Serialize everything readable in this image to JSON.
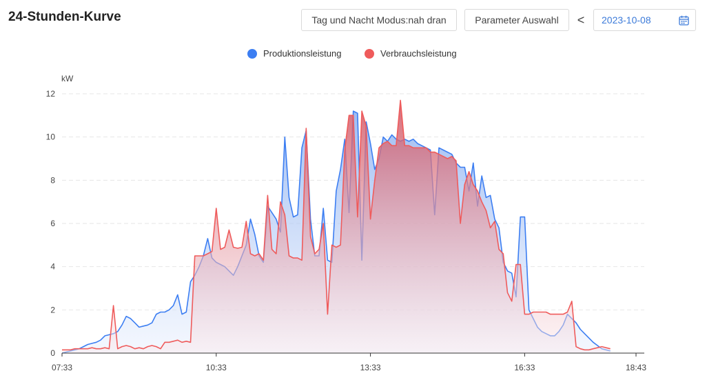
{
  "header": {
    "title": "24-Stunden-Kurve",
    "mode_button": "Tag und Nacht Modus:nah dran",
    "param_button": "Parameter Auswahl",
    "prev_symbol": "<",
    "date": "2023-10-08"
  },
  "icons": {
    "prev": "chevron-left-icon",
    "calendar": "calendar-icon"
  },
  "colors": {
    "production": "#3c7ef2",
    "consumption": "#ef5b5b",
    "grid": "#e6e6e6",
    "date_text": "#3b7ad9"
  },
  "chart_data": {
    "type": "area",
    "ylabel": "kW",
    "ylim": [
      0,
      12
    ],
    "yticks": [
      0,
      2,
      4,
      6,
      8,
      10,
      12
    ],
    "xlim_minutes_since_midnight": [
      453,
      1123
    ],
    "xticks": [
      "07:33",
      "10:33",
      "13:33",
      "16:33",
      "18:43"
    ],
    "grid": true,
    "legend_position": "top-center",
    "series": [
      {
        "name": "Produktionsleistung",
        "color": "#3c7ef2",
        "points": [
          [
            "07:33",
            0
          ],
          [
            "07:38",
            0.05
          ],
          [
            "07:43",
            0.1
          ],
          [
            "07:48",
            0.15
          ],
          [
            "07:53",
            0.2
          ],
          [
            "07:58",
            0.3
          ],
          [
            "08:03",
            0.4
          ],
          [
            "08:08",
            0.45
          ],
          [
            "08:13",
            0.5
          ],
          [
            "08:18",
            0.6
          ],
          [
            "08:23",
            0.8
          ],
          [
            "08:28",
            0.85
          ],
          [
            "08:33",
            0.9
          ],
          [
            "08:38",
            1.0
          ],
          [
            "08:43",
            1.3
          ],
          [
            "08:48",
            1.7
          ],
          [
            "08:53",
            1.6
          ],
          [
            "08:58",
            1.4
          ],
          [
            "09:03",
            1.2
          ],
          [
            "09:08",
            1.25
          ],
          [
            "09:13",
            1.3
          ],
          [
            "09:18",
            1.4
          ],
          [
            "09:23",
            1.8
          ],
          [
            "09:28",
            1.9
          ],
          [
            "09:33",
            1.9
          ],
          [
            "09:38",
            2.0
          ],
          [
            "09:43",
            2.2
          ],
          [
            "09:48",
            2.7
          ],
          [
            "09:53",
            1.8
          ],
          [
            "09:58",
            1.9
          ],
          [
            "10:03",
            3.3
          ],
          [
            "10:08",
            3.6
          ],
          [
            "10:13",
            4.0
          ],
          [
            "10:18",
            4.5
          ],
          [
            "10:23",
            5.3
          ],
          [
            "10:28",
            4.4
          ],
          [
            "10:33",
            4.2
          ],
          [
            "10:38",
            4.1
          ],
          [
            "10:43",
            4.0
          ],
          [
            "10:48",
            3.8
          ],
          [
            "10:53",
            3.6
          ],
          [
            "10:58",
            4.0
          ],
          [
            "11:03",
            4.5
          ],
          [
            "11:08",
            5.0
          ],
          [
            "11:13",
            6.2
          ],
          [
            "11:18",
            5.5
          ],
          [
            "11:23",
            4.5
          ],
          [
            "11:28",
            4.2
          ],
          [
            "11:33",
            6.8
          ],
          [
            "11:38",
            6.5
          ],
          [
            "11:43",
            6.2
          ],
          [
            "11:48",
            5.6
          ],
          [
            "11:53",
            10.0
          ],
          [
            "11:58",
            7.2
          ],
          [
            "12:03",
            6.3
          ],
          [
            "12:08",
            6.4
          ],
          [
            "12:13",
            9.5
          ],
          [
            "12:18",
            10.3
          ],
          [
            "12:23",
            6.2
          ],
          [
            "12:28",
            4.5
          ],
          [
            "12:33",
            4.5
          ],
          [
            "12:38",
            6.7
          ],
          [
            "12:43",
            4.3
          ],
          [
            "12:48",
            4.2
          ],
          [
            "12:53",
            7.5
          ],
          [
            "12:58",
            8.5
          ],
          [
            "13:03",
            9.9
          ],
          [
            "13:08",
            6.5
          ],
          [
            "13:13",
            11.2
          ],
          [
            "13:18",
            11.1
          ],
          [
            "13:23",
            4.3
          ],
          [
            "13:28",
            10.7
          ],
          [
            "13:33",
            9.7
          ],
          [
            "13:38",
            8.5
          ],
          [
            "13:43",
            9.0
          ],
          [
            "13:48",
            10.0
          ],
          [
            "13:53",
            9.8
          ],
          [
            "13:58",
            10.1
          ],
          [
            "14:03",
            9.9
          ],
          [
            "14:08",
            9.8
          ],
          [
            "14:13",
            9.9
          ],
          [
            "14:18",
            9.8
          ],
          [
            "14:23",
            9.9
          ],
          [
            "14:28",
            9.7
          ],
          [
            "14:33",
            9.6
          ],
          [
            "14:38",
            9.5
          ],
          [
            "14:43",
            9.4
          ],
          [
            "14:48",
            6.4
          ],
          [
            "14:53",
            9.5
          ],
          [
            "14:58",
            9.4
          ],
          [
            "15:03",
            9.3
          ],
          [
            "15:08",
            9.2
          ],
          [
            "15:13",
            8.8
          ],
          [
            "15:18",
            8.6
          ],
          [
            "15:23",
            8.6
          ],
          [
            "15:28",
            7.5
          ],
          [
            "15:33",
            8.8
          ],
          [
            "15:38",
            6.8
          ],
          [
            "15:43",
            8.2
          ],
          [
            "15:48",
            7.2
          ],
          [
            "15:53",
            7.3
          ],
          [
            "15:58",
            6.2
          ],
          [
            "16:03",
            5.8
          ],
          [
            "16:08",
            4.2
          ],
          [
            "16:13",
            3.8
          ],
          [
            "16:18",
            3.7
          ],
          [
            "16:23",
            2.6
          ],
          [
            "16:28",
            6.3
          ],
          [
            "16:33",
            6.3
          ],
          [
            "16:38",
            2.0
          ],
          [
            "16:43",
            1.6
          ],
          [
            "16:48",
            1.2
          ],
          [
            "16:53",
            1.0
          ],
          [
            "16:58",
            0.9
          ],
          [
            "17:03",
            0.8
          ],
          [
            "17:08",
            0.8
          ],
          [
            "17:13",
            1.0
          ],
          [
            "17:18",
            1.3
          ],
          [
            "17:23",
            1.8
          ],
          [
            "17:28",
            1.6
          ],
          [
            "17:33",
            1.4
          ],
          [
            "17:38",
            1.1
          ],
          [
            "17:43",
            0.9
          ],
          [
            "17:48",
            0.7
          ],
          [
            "17:53",
            0.5
          ],
          [
            "17:58",
            0.35
          ],
          [
            "18:03",
            0.2
          ],
          [
            "18:08",
            0.15
          ],
          [
            "18:13",
            0.1
          ]
        ]
      },
      {
        "name": "Verbrauchsleistung",
        "color": "#ef5b5b",
        "points": [
          [
            "07:33",
            0.15
          ],
          [
            "07:38",
            0.15
          ],
          [
            "07:43",
            0.15
          ],
          [
            "07:48",
            0.2
          ],
          [
            "07:53",
            0.2
          ],
          [
            "07:58",
            0.2
          ],
          [
            "08:03",
            0.2
          ],
          [
            "08:08",
            0.25
          ],
          [
            "08:13",
            0.2
          ],
          [
            "08:18",
            0.2
          ],
          [
            "08:23",
            0.25
          ],
          [
            "08:28",
            0.2
          ],
          [
            "08:33",
            2.2
          ],
          [
            "08:38",
            0.2
          ],
          [
            "08:43",
            0.3
          ],
          [
            "08:48",
            0.35
          ],
          [
            "08:53",
            0.3
          ],
          [
            "08:58",
            0.2
          ],
          [
            "09:03",
            0.25
          ],
          [
            "09:08",
            0.2
          ],
          [
            "09:13",
            0.3
          ],
          [
            "09:18",
            0.35
          ],
          [
            "09:23",
            0.3
          ],
          [
            "09:28",
            0.2
          ],
          [
            "09:33",
            0.5
          ],
          [
            "09:38",
            0.5
          ],
          [
            "09:43",
            0.55
          ],
          [
            "09:48",
            0.6
          ],
          [
            "09:53",
            0.5
          ],
          [
            "09:58",
            0.55
          ],
          [
            "10:03",
            0.5
          ],
          [
            "10:08",
            4.5
          ],
          [
            "10:13",
            4.5
          ],
          [
            "10:18",
            4.5
          ],
          [
            "10:23",
            4.6
          ],
          [
            "10:28",
            4.7
          ],
          [
            "10:33",
            6.7
          ],
          [
            "10:38",
            4.8
          ],
          [
            "10:43",
            4.9
          ],
          [
            "10:48",
            5.7
          ],
          [
            "10:53",
            4.9
          ],
          [
            "10:58",
            4.85
          ],
          [
            "11:03",
            4.9
          ],
          [
            "11:08",
            6.1
          ],
          [
            "11:13",
            4.6
          ],
          [
            "11:18",
            4.5
          ],
          [
            "11:23",
            4.6
          ],
          [
            "11:28",
            4.3
          ],
          [
            "11:33",
            7.3
          ],
          [
            "11:38",
            4.8
          ],
          [
            "11:43",
            4.6
          ],
          [
            "11:48",
            7.0
          ],
          [
            "11:53",
            6.4
          ],
          [
            "11:58",
            4.5
          ],
          [
            "12:03",
            4.4
          ],
          [
            "12:08",
            4.4
          ],
          [
            "12:13",
            4.3
          ],
          [
            "12:18",
            10.4
          ],
          [
            "12:23",
            5.4
          ],
          [
            "12:28",
            4.6
          ],
          [
            "12:33",
            4.8
          ],
          [
            "12:38",
            6.0
          ],
          [
            "12:43",
            1.8
          ],
          [
            "12:48",
            5.0
          ],
          [
            "12:53",
            4.9
          ],
          [
            "12:58",
            5.0
          ],
          [
            "13:03",
            9.4
          ],
          [
            "13:08",
            11.0
          ],
          [
            "13:13",
            11.0
          ],
          [
            "13:18",
            6.3
          ],
          [
            "13:23",
            11.2
          ],
          [
            "13:28",
            10.5
          ],
          [
            "13:33",
            6.2
          ],
          [
            "13:38",
            8.0
          ],
          [
            "13:43",
            9.5
          ],
          [
            "13:48",
            9.7
          ],
          [
            "13:53",
            9.8
          ],
          [
            "13:58",
            9.6
          ],
          [
            "14:03",
            9.6
          ],
          [
            "14:08",
            11.7
          ],
          [
            "14:13",
            9.6
          ],
          [
            "14:18",
            9.6
          ],
          [
            "14:23",
            9.5
          ],
          [
            "14:28",
            9.5
          ],
          [
            "14:33",
            9.5
          ],
          [
            "14:38",
            9.5
          ],
          [
            "14:43",
            9.3
          ],
          [
            "14:48",
            9.3
          ],
          [
            "14:53",
            9.2
          ],
          [
            "14:58",
            9.1
          ],
          [
            "15:03",
            9.0
          ],
          [
            "15:08",
            9.1
          ],
          [
            "15:13",
            8.9
          ],
          [
            "15:18",
            6.0
          ],
          [
            "15:23",
            7.8
          ],
          [
            "15:28",
            8.4
          ],
          [
            "15:33",
            7.8
          ],
          [
            "15:38",
            7.5
          ],
          [
            "15:43",
            7.0
          ],
          [
            "15:48",
            6.6
          ],
          [
            "15:53",
            5.8
          ],
          [
            "15:58",
            6.1
          ],
          [
            "16:03",
            4.8
          ],
          [
            "16:08",
            4.6
          ],
          [
            "16:13",
            2.8
          ],
          [
            "16:18",
            2.4
          ],
          [
            "16:23",
            4.1
          ],
          [
            "16:28",
            4.1
          ],
          [
            "16:33",
            1.8
          ],
          [
            "16:38",
            1.8
          ],
          [
            "16:43",
            1.9
          ],
          [
            "16:48",
            1.9
          ],
          [
            "16:53",
            1.9
          ],
          [
            "16:58",
            1.9
          ],
          [
            "17:03",
            1.8
          ],
          [
            "17:08",
            1.8
          ],
          [
            "17:13",
            1.8
          ],
          [
            "17:18",
            1.8
          ],
          [
            "17:23",
            1.9
          ],
          [
            "17:28",
            2.4
          ],
          [
            "17:33",
            0.3
          ],
          [
            "17:38",
            0.2
          ],
          [
            "17:43",
            0.15
          ],
          [
            "17:48",
            0.15
          ],
          [
            "17:53",
            0.2
          ],
          [
            "17:58",
            0.25
          ],
          [
            "18:03",
            0.3
          ],
          [
            "18:08",
            0.25
          ],
          [
            "18:13",
            0.2
          ]
        ]
      }
    ]
  }
}
